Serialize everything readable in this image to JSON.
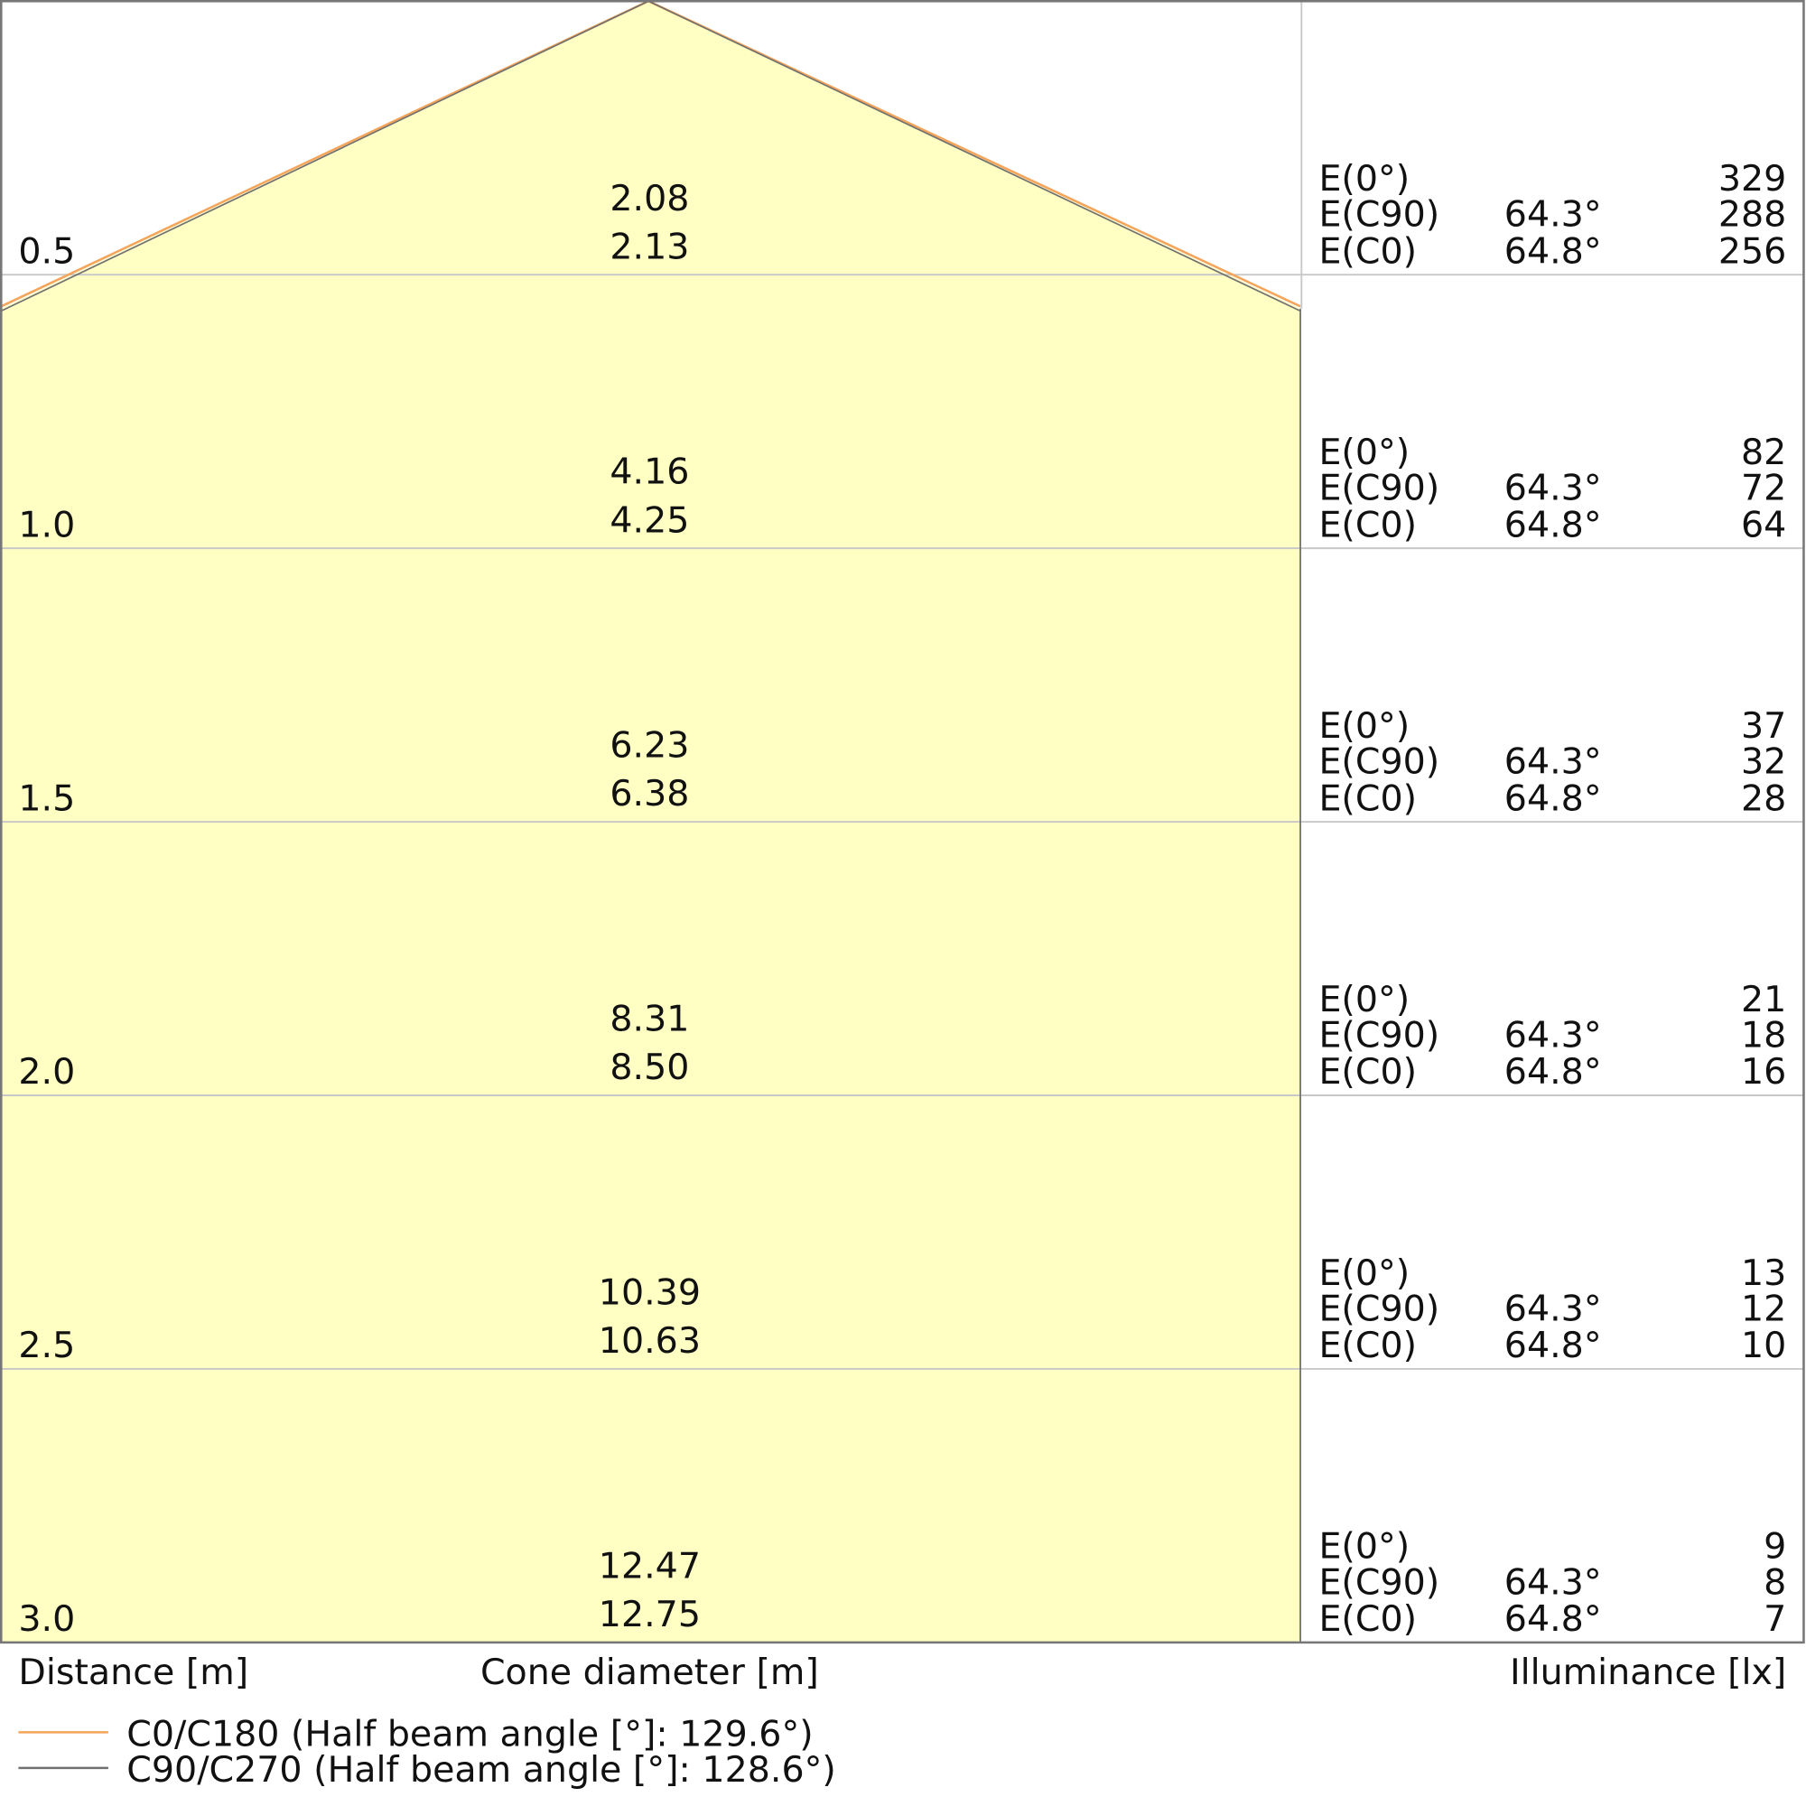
{
  "chart_data": {
    "type": "table",
    "description_labels": {
      "xlabel_distance": "Distance [m]",
      "xlabel_cone": "Cone diameter [m]",
      "xlabel_illuminance": "Illuminance [lx]"
    },
    "legend": [
      {
        "name": "C0/C180 (Half beam angle [°]: 129.6°)",
        "color": "#f5a55a"
      },
      {
        "name": "C90/C270 (Half beam angle [°]: 128.6°)",
        "color": "#707070"
      }
    ],
    "fill_color": "#ffffc4",
    "row_labels": [
      "E(0°)",
      "E(C90)",
      "E(C0)"
    ],
    "angles": {
      "C90": "64.3°",
      "C0": "64.8°"
    },
    "rows": [
      {
        "distance": "0.5",
        "cone_c90": "2.08",
        "cone_c0": "2.13",
        "e0": "329",
        "ec90": "288",
        "ec0": "256"
      },
      {
        "distance": "1.0",
        "cone_c90": "4.16",
        "cone_c0": "4.25",
        "e0": "82",
        "ec90": "72",
        "ec0": "64"
      },
      {
        "distance": "1.5",
        "cone_c90": "6.23",
        "cone_c0": "6.38",
        "e0": "37",
        "ec90": "32",
        "ec0": "28"
      },
      {
        "distance": "2.0",
        "cone_c90": "8.31",
        "cone_c0": "8.50",
        "e0": "21",
        "ec90": "18",
        "ec0": "16"
      },
      {
        "distance": "2.5",
        "cone_c90": "10.39",
        "cone_c0": "10.63",
        "e0": "13",
        "ec90": "12",
        "ec0": "10"
      },
      {
        "distance": "3.0",
        "cone_c90": "12.47",
        "cone_c0": "12.75",
        "e0": "9",
        "ec90": "8",
        "ec0": "7"
      }
    ]
  }
}
